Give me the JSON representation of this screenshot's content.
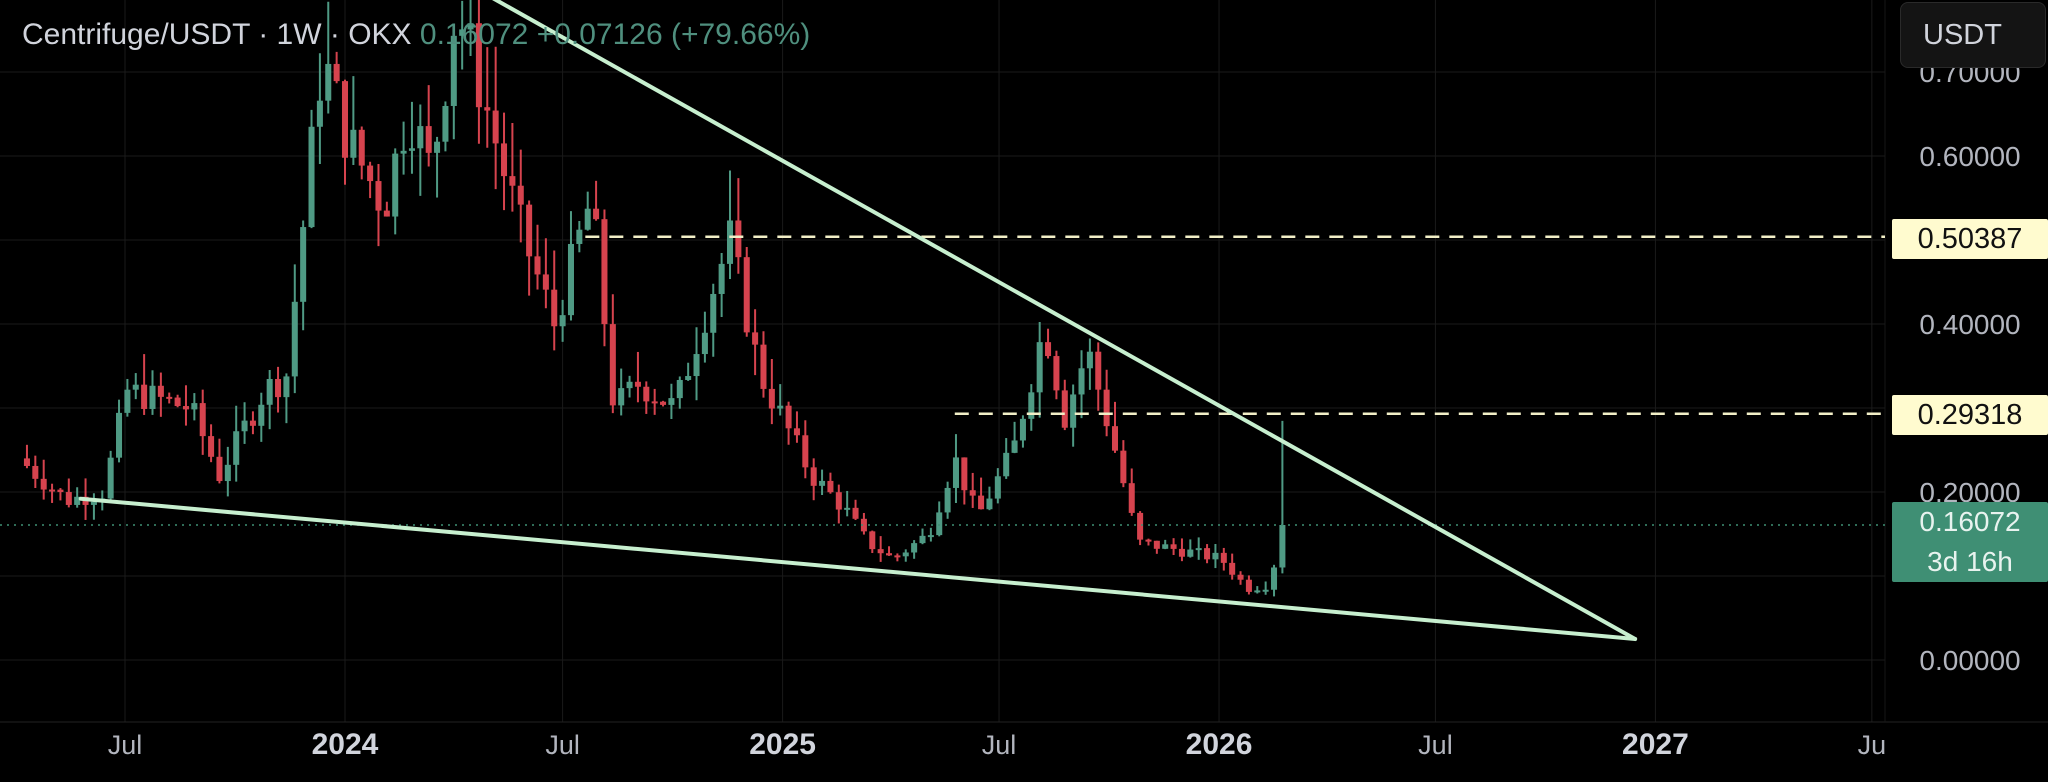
{
  "header": {
    "symbol": "Centrifuge/USDT · 1W · OKX",
    "last": "0.16072",
    "change": "+0.07126 (+79.66%)"
  },
  "currency_button": {
    "label": "USDT"
  },
  "price_label": {
    "price": "0.16072",
    "countdown": "3d 16h"
  },
  "chart_data": {
    "type": "candlestick",
    "title": "Centrifuge/USDT · 1W · OKX",
    "interval": "1W",
    "exchange": "OKX",
    "y_ticks": [
      "0.00000",
      "0.20000",
      "0.40000",
      "0.60000",
      "0.70000"
    ],
    "x_ticks": [
      "Jul",
      "2024",
      "Jul",
      "2025",
      "Jul",
      "2026",
      "Jul",
      "2027",
      "Ju"
    ],
    "ylim": [
      -0.01,
      0.72
    ],
    "last_price": 0.16072,
    "horizontal_levels": [
      {
        "label": "0.50387",
        "value": 0.50387
      },
      {
        "label": "0.29318",
        "value": 0.29318
      }
    ],
    "trendlines": [
      {
        "name": "upper",
        "from": [
          "2024-05-01",
          0.79
        ],
        "to": [
          "2026-12-15",
          0.025
        ]
      },
      {
        "name": "lower",
        "from": [
          "2023-05-25",
          0.192
        ],
        "to": [
          "2026-12-15",
          0.025
        ]
      }
    ],
    "ohlc_anchors": [
      [
        "2023-04-10",
        0.24
      ],
      [
        "2023-05-20",
        0.19
      ],
      [
        "2023-06-20",
        0.2
      ],
      [
        "2023-07-10",
        0.32
      ],
      [
        "2023-09-01",
        0.3
      ],
      [
        "2023-09-25",
        0.22
      ],
      [
        "2023-11-01",
        0.32
      ],
      [
        "2023-11-20",
        0.34
      ],
      [
        "2023-12-20",
        0.72
      ],
      [
        "2024-01-10",
        0.62
      ],
      [
        "2024-02-10",
        0.54
      ],
      [
        "2024-03-01",
        0.66
      ],
      [
        "2024-03-20",
        0.58
      ],
      [
        "2024-04-10",
        0.78
      ],
      [
        "2024-05-01",
        0.68
      ],
      [
        "2024-06-01",
        0.52
      ],
      [
        "2024-07-01",
        0.4
      ],
      [
        "2024-08-01",
        0.55
      ],
      [
        "2024-08-20",
        0.3
      ],
      [
        "2024-09-10",
        0.33
      ],
      [
        "2024-10-10",
        0.3
      ],
      [
        "2024-11-10",
        0.44
      ],
      [
        "2024-11-25",
        0.5
      ],
      [
        "2024-12-20",
        0.34
      ],
      [
        "2025-02-01",
        0.22
      ],
      [
        "2025-03-01",
        0.18
      ],
      [
        "2025-03-20",
        0.14
      ],
      [
        "2025-04-10",
        0.12
      ],
      [
        "2025-05-10",
        0.15
      ],
      [
        "2025-06-01",
        0.24
      ],
      [
        "2025-06-20",
        0.17
      ],
      [
        "2025-07-20",
        0.25
      ],
      [
        "2025-08-15",
        0.4
      ],
      [
        "2025-09-01",
        0.29
      ],
      [
        "2025-09-20",
        0.37
      ],
      [
        "2025-10-15",
        0.24
      ],
      [
        "2025-11-01",
        0.14
      ],
      [
        "2025-12-10",
        0.13
      ],
      [
        "2026-01-10",
        0.12
      ],
      [
        "2026-02-01",
        0.085
      ],
      [
        "2026-02-20",
        0.09
      ],
      [
        "2026-03-01",
        0.16072
      ]
    ],
    "colors": {
      "up": "#4f9a84",
      "down": "#d6434e",
      "trendline": "#c7efcf",
      "level": "#f2efc7"
    }
  }
}
